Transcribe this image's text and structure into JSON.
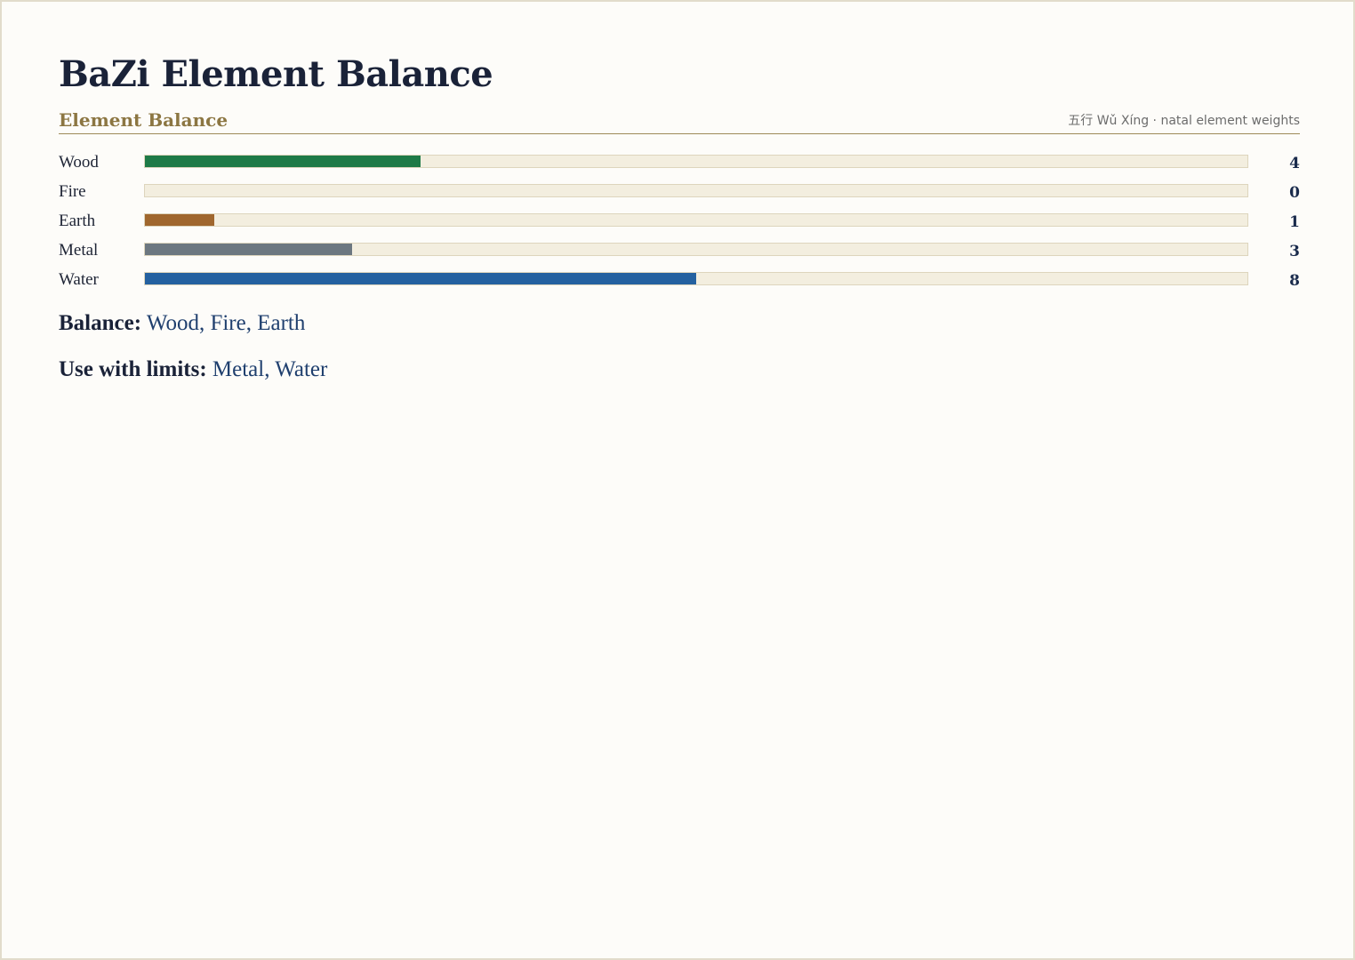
{
  "title": "BaZi Element Balance",
  "section": {
    "title": "Element Balance",
    "note": "五行 Wǔ Xíng · natal element weights"
  },
  "chart_data": {
    "type": "bar",
    "orientation": "horizontal",
    "categories": [
      "Wood",
      "Fire",
      "Earth",
      "Metal",
      "Water"
    ],
    "values": [
      4,
      0,
      1,
      3,
      8
    ],
    "colors": [
      "#1e7a47",
      "#c0392b",
      "#a0672e",
      "#6c7780",
      "#2461a0"
    ],
    "xlim": [
      0,
      16
    ],
    "grid": false,
    "legend": "none"
  },
  "summary": {
    "balance_label": "Balance:",
    "balance_value": "Wood, Fire, Earth",
    "limits_label": "Use with limits:",
    "limits_value": "Metal, Water"
  }
}
